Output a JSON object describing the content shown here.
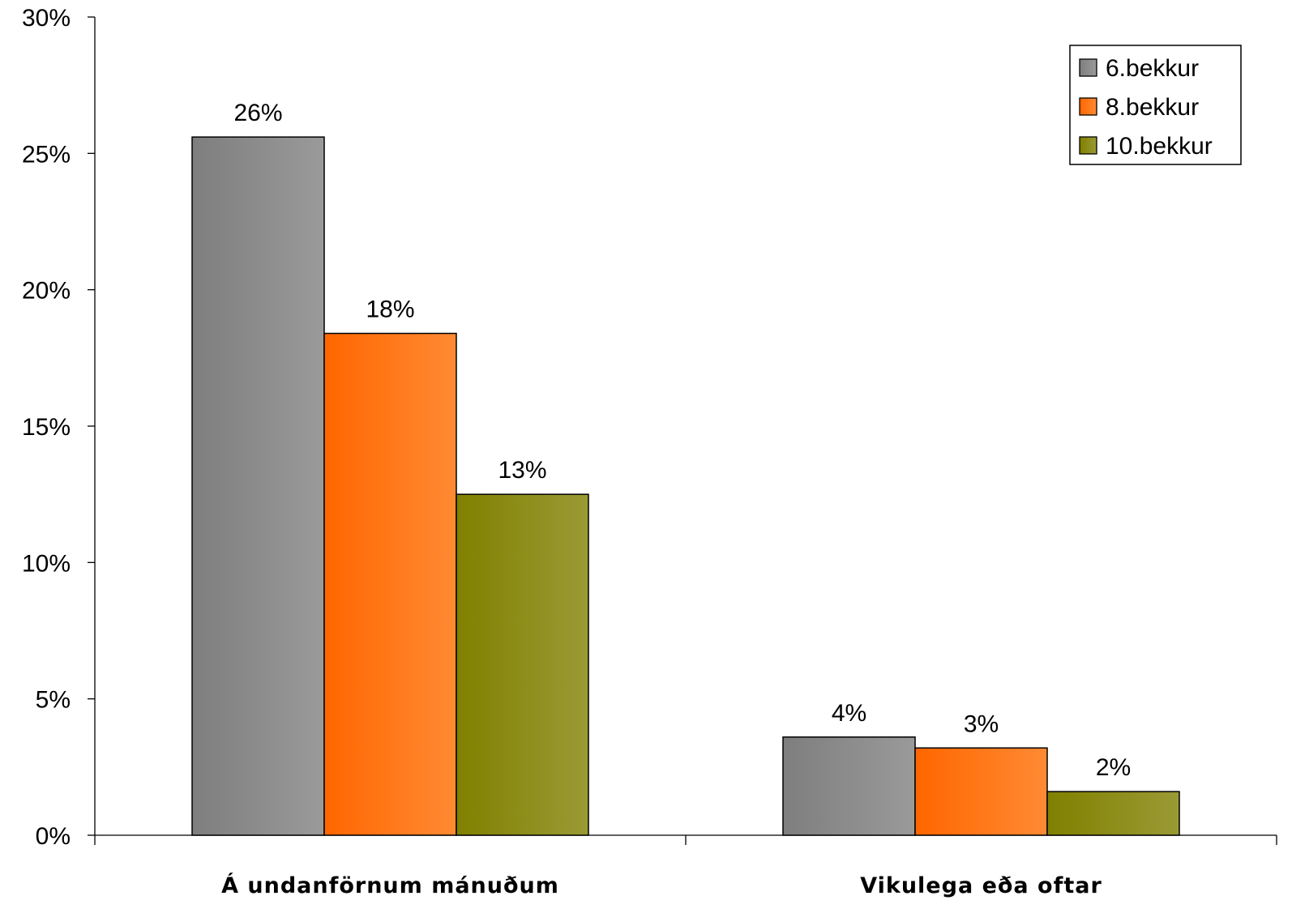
{
  "chart_data": {
    "type": "bar",
    "categories": [
      "Á undanförnum mánuðum",
      "Vikulega eða oftar"
    ],
    "series": [
      {
        "name": "6.bekkur",
        "values": [
          25.6,
          3.6
        ],
        "labels": [
          "26%",
          "4%"
        ],
        "color": "#9a9a9a",
        "color_dark": "#7e7e7e"
      },
      {
        "name": "8.bekkur",
        "values": [
          18.4,
          3.2
        ],
        "labels": [
          "18%",
          "3%"
        ],
        "color": "#ff8a33",
        "color_dark": "#ff6600"
      },
      {
        "name": "10.bekkur",
        "values": [
          12.5,
          1.6
        ],
        "labels": [
          "13%",
          "2%"
        ],
        "color": "#9a9a35",
        "color_dark": "#808000"
      }
    ],
    "ylim": [
      0,
      30
    ],
    "yticks": [
      0,
      5,
      10,
      15,
      20,
      25,
      30
    ],
    "ytick_labels": [
      "0%",
      "5%",
      "10%",
      "15%",
      "20%",
      "25%",
      "30%"
    ],
    "legend": "top-right",
    "grid": false
  }
}
